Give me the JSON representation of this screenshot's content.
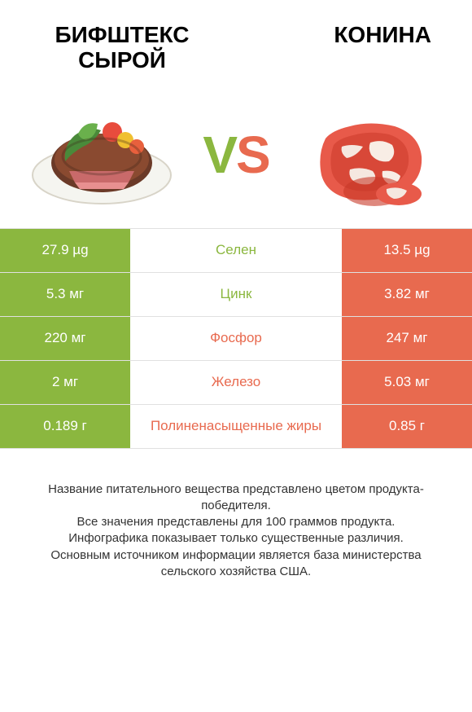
{
  "colors": {
    "left": "#8bb73f",
    "right": "#e86a4f",
    "border": "#e0e0e0",
    "text": "#333333",
    "vs_v": "#8bb73f",
    "vs_s": "#e86a4f"
  },
  "header": {
    "left_title": "БИФШТЕКС СЫРОЙ",
    "right_title": "КОНИНА"
  },
  "vs": {
    "v": "V",
    "s": "S"
  },
  "rows": [
    {
      "left": "27.9 µg",
      "label": "Селен",
      "right": "13.5 µg",
      "winner": "left"
    },
    {
      "left": "5.3 мг",
      "label": "Цинк",
      "right": "3.82 мг",
      "winner": "left"
    },
    {
      "left": "220 мг",
      "label": "Фосфор",
      "right": "247 мг",
      "winner": "right"
    },
    {
      "left": "2 мг",
      "label": "Железо",
      "right": "5.03 мг",
      "winner": "right"
    },
    {
      "left": "0.189 г",
      "label": "Полиненасыщенные жиры",
      "right": "0.85 г",
      "winner": "right"
    }
  ],
  "footnote": {
    "l1": "Название питательного вещества представлено цветом продукта-победителя.",
    "l2": "Все значения представлены для 100 граммов продукта.",
    "l3": "Инфографика показывает только существенные различия.",
    "l4": "Основным источником информации является база министерства сельского хозяйства США."
  }
}
